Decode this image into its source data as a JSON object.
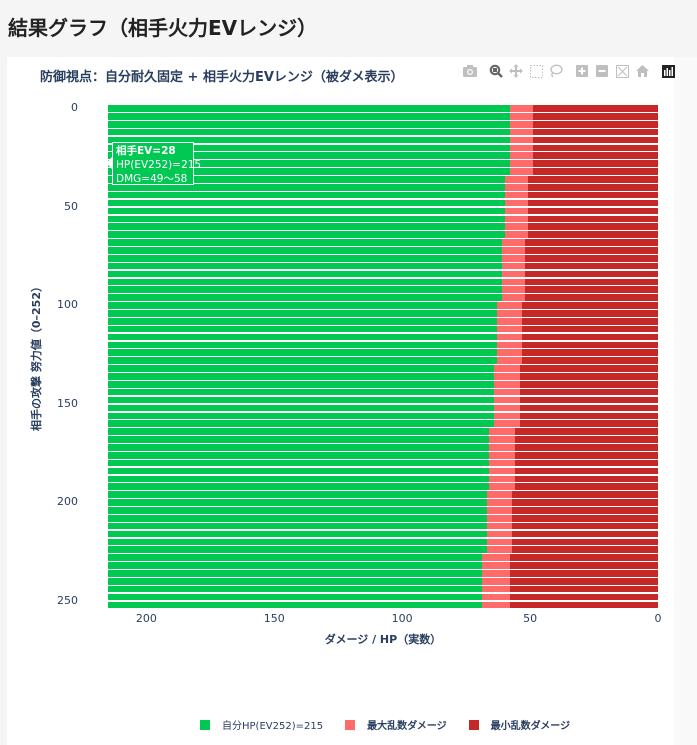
{
  "page": {
    "title": "結果グラフ（相手火力EVレンジ）"
  },
  "chart_card": {
    "title": "防御視点：自分耐久固定 + 相手火力EVレンジ（被ダメ表示）"
  },
  "modebar": {
    "buttons": [
      {
        "name": "camera-icon",
        "label": "Download plot as a png",
        "glyph": "📷"
      },
      {
        "name": "zoom-icon",
        "label": "Zoom",
        "glyph": "🔍"
      },
      {
        "name": "pan-icon",
        "label": "Pan",
        "glyph": "✥"
      },
      {
        "name": "box-select-icon",
        "label": "Box Select",
        "glyph": "⬚"
      },
      {
        "name": "lasso-select-icon",
        "label": "Lasso Select",
        "glyph": "◌"
      },
      {
        "name": "zoom-in-icon",
        "label": "Zoom in",
        "glyph": "+"
      },
      {
        "name": "zoom-out-icon",
        "label": "Zoom out",
        "glyph": "−"
      },
      {
        "name": "autoscale-icon",
        "label": "Autoscale",
        "glyph": "⤢"
      },
      {
        "name": "reset-axes-icon",
        "label": "Reset axes",
        "glyph": "⌂"
      },
      {
        "name": "plotly-logo-icon",
        "label": "Produced with Plotly",
        "glyph": "▮"
      }
    ]
  },
  "colors": {
    "hp": "#00c853",
    "max_damage": "#ff6b6b",
    "min_damage": "#c62828",
    "axis_text": "#2a3f5f"
  },
  "tooltip": {
    "line1": "相手EV=28",
    "line2": "HP(EV252)=215",
    "line3": "DMG=49〜58"
  },
  "chart_data": {
    "type": "bar",
    "orientation": "horizontal",
    "barmode": "overlay",
    "title": "防御視点：自分耐久固定 + 相手火力EVレンジ（被ダメ表示）",
    "xlabel": "ダメージ / HP（実数）",
    "ylabel": "相手の攻撃 努力値（0–252）",
    "xlim": [
      215,
      0
    ],
    "x_reversed": true,
    "ylim": [
      0,
      252
    ],
    "y_reversed": true,
    "xticks": [
      200,
      150,
      100,
      50,
      0
    ],
    "yticks": [
      0,
      50,
      100,
      150,
      200,
      250
    ],
    "legend": {
      "position": "bottom",
      "entries": [
        "自分HP(EV252)=215",
        "最大乱数ダメージ",
        "最小乱数ダメージ"
      ]
    },
    "hp": 215,
    "groups": [
      {
        "ev_from": 0,
        "ev_to": 32,
        "min": 49,
        "max": 58
      },
      {
        "ev_from": 36,
        "ev_to": 64,
        "min": 51,
        "max": 60
      },
      {
        "ev_from": 68,
        "ev_to": 96,
        "min": 52,
        "max": 61
      },
      {
        "ev_from": 100,
        "ev_to": 128,
        "min": 53,
        "max": 63
      },
      {
        "ev_from": 132,
        "ev_to": 160,
        "min": 54,
        "max": 64
      },
      {
        "ev_from": 164,
        "ev_to": 192,
        "min": 56,
        "max": 66
      },
      {
        "ev_from": 196,
        "ev_to": 224,
        "min": 57,
        "max": 67
      },
      {
        "ev_from": 228,
        "ev_to": 252,
        "min": 58,
        "max": 69
      }
    ],
    "ev_step": 4,
    "series": [
      {
        "name": "自分HP(EV252)=215",
        "color": "#00c853"
      },
      {
        "name": "最大乱数ダメージ",
        "color": "#ff6b6b"
      },
      {
        "name": "最小乱数ダメージ",
        "color": "#c62828"
      }
    ]
  }
}
